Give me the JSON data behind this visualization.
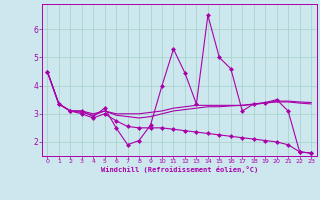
{
  "xlabel": "Windchill (Refroidissement éolien,°C)",
  "background_color": "#cce8ee",
  "grid_color": "#aad4cc",
  "line_color": "#aa00aa",
  "x": [
    0,
    1,
    2,
    3,
    4,
    5,
    6,
    7,
    8,
    9,
    10,
    11,
    12,
    13,
    14,
    15,
    16,
    17,
    18,
    19,
    20,
    21,
    22,
    23
  ],
  "series1": [
    4.5,
    3.35,
    3.1,
    3.1,
    2.9,
    3.2,
    2.5,
    1.9,
    2.05,
    2.6,
    4.0,
    5.3,
    4.45,
    3.35,
    6.5,
    5.0,
    4.6,
    3.1,
    3.35,
    3.4,
    3.5,
    3.1,
    1.65,
    1.6
  ],
  "series2": [
    4.5,
    3.35,
    3.1,
    3.1,
    3.0,
    3.1,
    3.0,
    3.0,
    3.0,
    3.05,
    3.1,
    3.2,
    3.25,
    3.3,
    3.3,
    3.3,
    3.3,
    3.3,
    3.35,
    3.38,
    3.45,
    3.45,
    3.42,
    3.4
  ],
  "series3": [
    4.5,
    3.35,
    3.1,
    3.05,
    2.95,
    3.1,
    2.95,
    2.9,
    2.85,
    2.9,
    3.0,
    3.1,
    3.15,
    3.2,
    3.25,
    3.25,
    3.28,
    3.3,
    3.33,
    3.38,
    3.42,
    3.42,
    3.38,
    3.35
  ],
  "series4": [
    4.5,
    3.35,
    3.1,
    3.0,
    2.85,
    3.0,
    2.75,
    2.55,
    2.5,
    2.5,
    2.5,
    2.45,
    2.4,
    2.35,
    2.3,
    2.25,
    2.2,
    2.15,
    2.1,
    2.05,
    2.0,
    1.9,
    1.65,
    1.6
  ],
  "ylim": [
    1.5,
    6.9
  ],
  "yticks": [
    2,
    3,
    4,
    5,
    6
  ],
  "xlim": [
    -0.5,
    23.5
  ]
}
